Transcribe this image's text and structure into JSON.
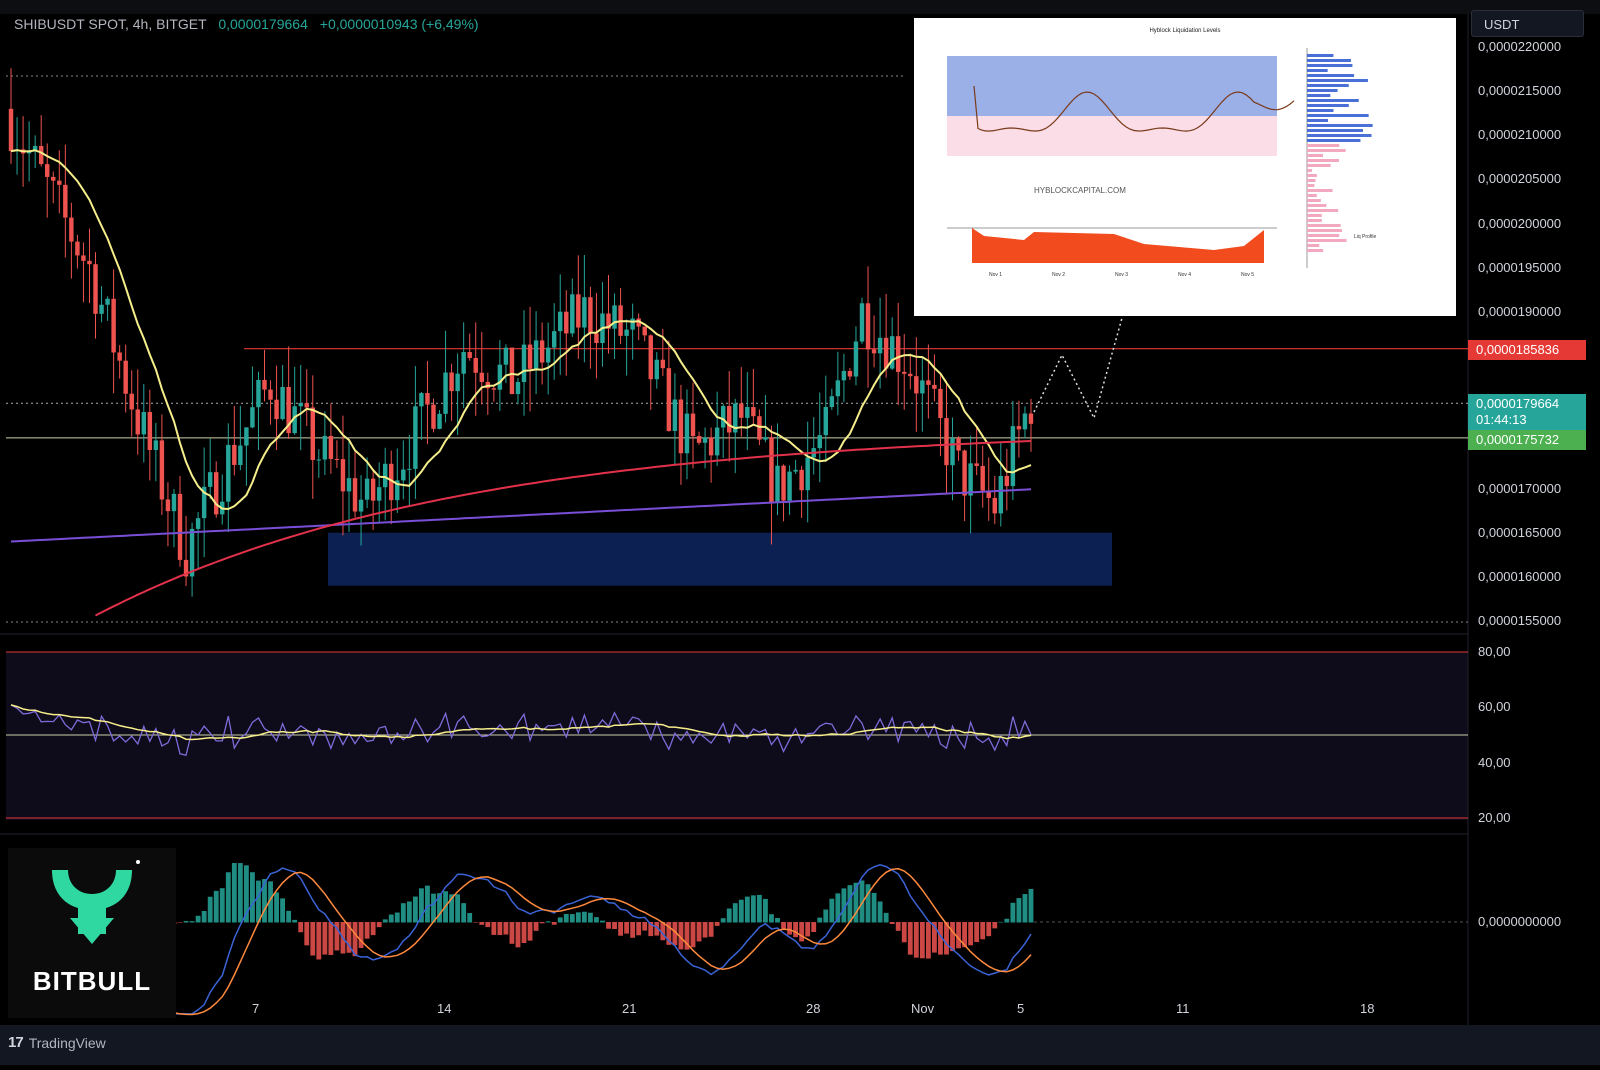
{
  "header": {
    "symbol": "SHIBUSDT SPOT, 4h, BITGET",
    "last_price": "0,0000179664",
    "change": "+0,0000010943 (+6,49%)"
  },
  "currency_selector": "USDT",
  "colors": {
    "up": "#26a69a",
    "down": "#ef5350",
    "ma_fast": "#f5ee8a",
    "ma_mid": "#e2314a",
    "ma_slow": "#7a4fd8",
    "zone": "#0f2660",
    "rsi_line": "#7e6bd9",
    "macd_line": "#3b63d6",
    "signal_line": "#ff8a3d"
  },
  "price_axis": {
    "labels": [
      "0,0000220000",
      "0,0000215000",
      "0,0000210000",
      "0,0000205000",
      "0,0000200000",
      "0,0000195000",
      "0,0000190000",
      "0,0000170000",
      "0,0000165000",
      "0,0000160000",
      "0,0000155000"
    ]
  },
  "price_tags": {
    "resistance": "0,0000185836",
    "current": "0,0000179664",
    "countdown": "01:44:13",
    "support": "0,0000175732"
  },
  "rsi_axis": {
    "labels": [
      "80,00",
      "60,00",
      "40,00",
      "20,00"
    ]
  },
  "macd_axis": {
    "labels": [
      "0,0000000000"
    ]
  },
  "time_axis": {
    "labels": [
      "7",
      "14",
      "21",
      "28",
      "Nov",
      "5",
      "11",
      "18"
    ]
  },
  "chart_data": {
    "type": "line",
    "title": "SHIBUSDT SPOT, 4h, BITGET",
    "x_axis": [
      "7",
      "14",
      "21",
      "28",
      "Nov",
      "5",
      "11",
      "18"
    ],
    "ylim": [
      1.55e-05,
      2.2e-05
    ],
    "levels": {
      "resistance": 1.85836e-05,
      "current": 1.79664e-05,
      "support": 1.75732e-05,
      "demand_zone": [
        1.59e-05,
        1.65e-05
      ]
    },
    "rsi_levels": [
      80,
      50,
      20
    ]
  },
  "inset": {
    "title": "Hyblock Liquidation Levels",
    "watermark": "HYBLOCKCAPITAL.COM",
    "x_labels": [
      "Nov 1",
      "Nov 2",
      "Nov 3",
      "Nov 4",
      "Nov 5"
    ],
    "profile_label": "Liq Profile"
  },
  "brand": {
    "name": "BITBULL"
  },
  "footer": {
    "platform": "TradingView"
  }
}
